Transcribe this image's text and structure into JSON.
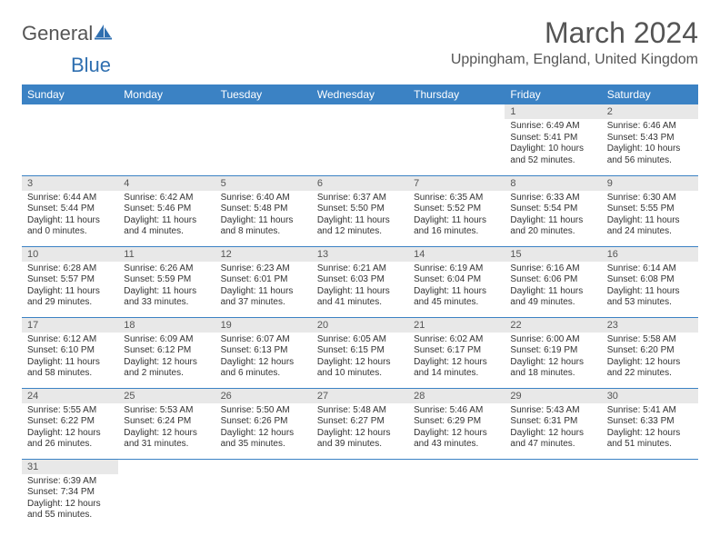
{
  "logo": {
    "text1": "General",
    "text2": "Blue"
  },
  "title": "March 2024",
  "location": "Uppingham, England, United Kingdom",
  "weekdays": [
    "Sunday",
    "Monday",
    "Tuesday",
    "Wednesday",
    "Thursday",
    "Friday",
    "Saturday"
  ],
  "colors": {
    "header_bg": "#3b82c4",
    "header_text": "#ffffff",
    "daynum_bg": "#e8e8e8",
    "border": "#3b82c4",
    "logo_blue": "#2f6fb0"
  },
  "weeks": [
    [
      null,
      null,
      null,
      null,
      null,
      {
        "n": "1",
        "sr": "Sunrise: 6:49 AM",
        "ss": "Sunset: 5:41 PM",
        "d1": "Daylight: 10 hours",
        "d2": "and 52 minutes."
      },
      {
        "n": "2",
        "sr": "Sunrise: 6:46 AM",
        "ss": "Sunset: 5:43 PM",
        "d1": "Daylight: 10 hours",
        "d2": "and 56 minutes."
      }
    ],
    [
      {
        "n": "3",
        "sr": "Sunrise: 6:44 AM",
        "ss": "Sunset: 5:44 PM",
        "d1": "Daylight: 11 hours",
        "d2": "and 0 minutes."
      },
      {
        "n": "4",
        "sr": "Sunrise: 6:42 AM",
        "ss": "Sunset: 5:46 PM",
        "d1": "Daylight: 11 hours",
        "d2": "and 4 minutes."
      },
      {
        "n": "5",
        "sr": "Sunrise: 6:40 AM",
        "ss": "Sunset: 5:48 PM",
        "d1": "Daylight: 11 hours",
        "d2": "and 8 minutes."
      },
      {
        "n": "6",
        "sr": "Sunrise: 6:37 AM",
        "ss": "Sunset: 5:50 PM",
        "d1": "Daylight: 11 hours",
        "d2": "and 12 minutes."
      },
      {
        "n": "7",
        "sr": "Sunrise: 6:35 AM",
        "ss": "Sunset: 5:52 PM",
        "d1": "Daylight: 11 hours",
        "d2": "and 16 minutes."
      },
      {
        "n": "8",
        "sr": "Sunrise: 6:33 AM",
        "ss": "Sunset: 5:54 PM",
        "d1": "Daylight: 11 hours",
        "d2": "and 20 minutes."
      },
      {
        "n": "9",
        "sr": "Sunrise: 6:30 AM",
        "ss": "Sunset: 5:55 PM",
        "d1": "Daylight: 11 hours",
        "d2": "and 24 minutes."
      }
    ],
    [
      {
        "n": "10",
        "sr": "Sunrise: 6:28 AM",
        "ss": "Sunset: 5:57 PM",
        "d1": "Daylight: 11 hours",
        "d2": "and 29 minutes."
      },
      {
        "n": "11",
        "sr": "Sunrise: 6:26 AM",
        "ss": "Sunset: 5:59 PM",
        "d1": "Daylight: 11 hours",
        "d2": "and 33 minutes."
      },
      {
        "n": "12",
        "sr": "Sunrise: 6:23 AM",
        "ss": "Sunset: 6:01 PM",
        "d1": "Daylight: 11 hours",
        "d2": "and 37 minutes."
      },
      {
        "n": "13",
        "sr": "Sunrise: 6:21 AM",
        "ss": "Sunset: 6:03 PM",
        "d1": "Daylight: 11 hours",
        "d2": "and 41 minutes."
      },
      {
        "n": "14",
        "sr": "Sunrise: 6:19 AM",
        "ss": "Sunset: 6:04 PM",
        "d1": "Daylight: 11 hours",
        "d2": "and 45 minutes."
      },
      {
        "n": "15",
        "sr": "Sunrise: 6:16 AM",
        "ss": "Sunset: 6:06 PM",
        "d1": "Daylight: 11 hours",
        "d2": "and 49 minutes."
      },
      {
        "n": "16",
        "sr": "Sunrise: 6:14 AM",
        "ss": "Sunset: 6:08 PM",
        "d1": "Daylight: 11 hours",
        "d2": "and 53 minutes."
      }
    ],
    [
      {
        "n": "17",
        "sr": "Sunrise: 6:12 AM",
        "ss": "Sunset: 6:10 PM",
        "d1": "Daylight: 11 hours",
        "d2": "and 58 minutes."
      },
      {
        "n": "18",
        "sr": "Sunrise: 6:09 AM",
        "ss": "Sunset: 6:12 PM",
        "d1": "Daylight: 12 hours",
        "d2": "and 2 minutes."
      },
      {
        "n": "19",
        "sr": "Sunrise: 6:07 AM",
        "ss": "Sunset: 6:13 PM",
        "d1": "Daylight: 12 hours",
        "d2": "and 6 minutes."
      },
      {
        "n": "20",
        "sr": "Sunrise: 6:05 AM",
        "ss": "Sunset: 6:15 PM",
        "d1": "Daylight: 12 hours",
        "d2": "and 10 minutes."
      },
      {
        "n": "21",
        "sr": "Sunrise: 6:02 AM",
        "ss": "Sunset: 6:17 PM",
        "d1": "Daylight: 12 hours",
        "d2": "and 14 minutes."
      },
      {
        "n": "22",
        "sr": "Sunrise: 6:00 AM",
        "ss": "Sunset: 6:19 PM",
        "d1": "Daylight: 12 hours",
        "d2": "and 18 minutes."
      },
      {
        "n": "23",
        "sr": "Sunrise: 5:58 AM",
        "ss": "Sunset: 6:20 PM",
        "d1": "Daylight: 12 hours",
        "d2": "and 22 minutes."
      }
    ],
    [
      {
        "n": "24",
        "sr": "Sunrise: 5:55 AM",
        "ss": "Sunset: 6:22 PM",
        "d1": "Daylight: 12 hours",
        "d2": "and 26 minutes."
      },
      {
        "n": "25",
        "sr": "Sunrise: 5:53 AM",
        "ss": "Sunset: 6:24 PM",
        "d1": "Daylight: 12 hours",
        "d2": "and 31 minutes."
      },
      {
        "n": "26",
        "sr": "Sunrise: 5:50 AM",
        "ss": "Sunset: 6:26 PM",
        "d1": "Daylight: 12 hours",
        "d2": "and 35 minutes."
      },
      {
        "n": "27",
        "sr": "Sunrise: 5:48 AM",
        "ss": "Sunset: 6:27 PM",
        "d1": "Daylight: 12 hours",
        "d2": "and 39 minutes."
      },
      {
        "n": "28",
        "sr": "Sunrise: 5:46 AM",
        "ss": "Sunset: 6:29 PM",
        "d1": "Daylight: 12 hours",
        "d2": "and 43 minutes."
      },
      {
        "n": "29",
        "sr": "Sunrise: 5:43 AM",
        "ss": "Sunset: 6:31 PM",
        "d1": "Daylight: 12 hours",
        "d2": "and 47 minutes."
      },
      {
        "n": "30",
        "sr": "Sunrise: 5:41 AM",
        "ss": "Sunset: 6:33 PM",
        "d1": "Daylight: 12 hours",
        "d2": "and 51 minutes."
      }
    ],
    [
      {
        "n": "31",
        "sr": "Sunrise: 6:39 AM",
        "ss": "Sunset: 7:34 PM",
        "d1": "Daylight: 12 hours",
        "d2": "and 55 minutes."
      },
      null,
      null,
      null,
      null,
      null,
      null
    ]
  ]
}
